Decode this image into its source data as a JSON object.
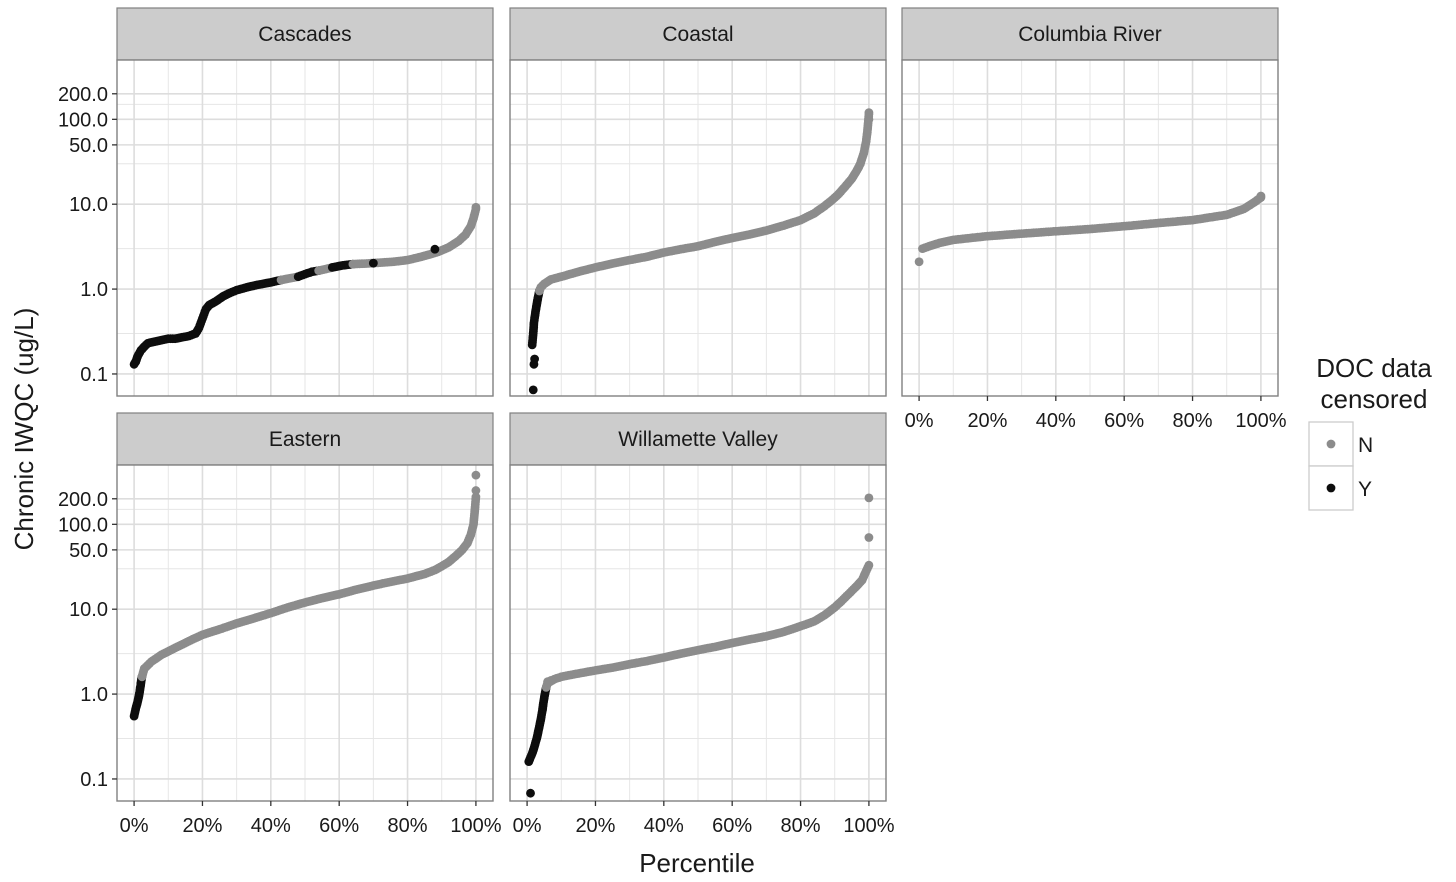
{
  "chart_data": {
    "type": "scatter",
    "facet_layout": "wrap",
    "ylabel": "Chronic IWQC (ug/L)",
    "xlabel": "Percentile",
    "y_scale": "log10",
    "ylim": [
      0.055,
      500
    ],
    "xlim": [
      -5,
      105
    ],
    "y_ticks": [
      0.1,
      1,
      10,
      50,
      100,
      200
    ],
    "y_tick_labels": [
      "0.1",
      "1.0",
      "10.0",
      "50.0",
      "100.0",
      "200.0"
    ],
    "y_minor_ticks": [
      0.3,
      3,
      30,
      150
    ],
    "x_ticks": [
      0,
      20,
      40,
      60,
      80,
      100
    ],
    "x_tick_labels": [
      "0%",
      "20%",
      "40%",
      "60%",
      "80%",
      "100%"
    ],
    "grid": true,
    "legend": {
      "title_lines": [
        "DOC data",
        "censored"
      ],
      "position": "right",
      "entries": [
        {
          "label": "N",
          "color": "#8c8c8c"
        },
        {
          "label": "Y",
          "color": "#0d0d0d"
        }
      ]
    },
    "colors": {
      "N": "#8c8c8c",
      "Y": "#0d0d0d",
      "strip_fill": "#cccccc",
      "grid": "#e6e6e6",
      "frame": "#808080"
    },
    "panels": [
      {
        "name": "Cascades",
        "curves": [
          {
            "group": "Y",
            "points": [
              [
                0,
                0.13
              ],
              [
                0.5,
                0.14
              ],
              [
                1,
                0.16
              ],
              [
                2,
                0.19
              ],
              [
                3,
                0.21
              ],
              [
                4,
                0.23
              ],
              [
                6,
                0.24
              ],
              [
                8,
                0.25
              ],
              [
                10,
                0.26
              ],
              [
                12,
                0.26
              ],
              [
                14,
                0.27
              ],
              [
                16,
                0.28
              ],
              [
                18,
                0.3
              ],
              [
                19,
                0.35
              ],
              [
                20,
                0.45
              ],
              [
                21,
                0.58
              ],
              [
                22,
                0.65
              ],
              [
                24,
                0.72
              ],
              [
                26,
                0.82
              ],
              [
                28,
                0.9
              ],
              [
                30,
                0.97
              ],
              [
                33,
                1.05
              ],
              [
                36,
                1.12
              ],
              [
                40,
                1.2
              ],
              [
                43,
                1.28
              ]
            ]
          },
          {
            "group": "N",
            "points": [
              [
                43,
                1.28
              ],
              [
                46,
                1.35
              ],
              [
                48,
                1.4
              ]
            ]
          },
          {
            "group": "Y",
            "points": [
              [
                48,
                1.4
              ],
              [
                50,
                1.5
              ],
              [
                52,
                1.6
              ],
              [
                54,
                1.65
              ]
            ]
          },
          {
            "group": "N",
            "points": [
              [
                54,
                1.65
              ],
              [
                56,
                1.72
              ],
              [
                58,
                1.8
              ]
            ]
          },
          {
            "group": "Y",
            "points": [
              [
                58,
                1.8
              ],
              [
                61,
                1.9
              ],
              [
                64,
                1.97
              ]
            ]
          },
          {
            "group": "N",
            "points": [
              [
                64,
                1.97
              ],
              [
                68,
                2.0
              ],
              [
                72,
                2.05
              ],
              [
                76,
                2.1
              ],
              [
                80,
                2.2
              ],
              [
                84,
                2.4
              ],
              [
                87,
                2.6
              ],
              [
                89,
                2.75
              ],
              [
                92,
                3.1
              ],
              [
                95,
                3.7
              ],
              [
                97,
                4.4
              ],
              [
                98.5,
                5.5
              ],
              [
                99.3,
                6.8
              ],
              [
                100,
                8.8
              ]
            ]
          }
        ],
        "points": [
          {
            "group": "Y",
            "x": 88,
            "y": 2.95
          },
          {
            "group": "Y",
            "x": 70,
            "y": 2.02
          },
          {
            "group": "N",
            "x": 100,
            "y": 9.2
          }
        ]
      },
      {
        "name": "Coastal",
        "curves": [
          {
            "group": "Y",
            "points": [
              [
                1.5,
                0.22
              ],
              [
                1.8,
                0.3
              ],
              [
                2,
                0.4
              ],
              [
                2.4,
                0.52
              ],
              [
                2.8,
                0.65
              ],
              [
                3.2,
                0.8
              ],
              [
                3.6,
                0.95
              ]
            ]
          },
          {
            "group": "N",
            "points": [
              [
                3.6,
                0.95
              ],
              [
                4,
                1.05
              ],
              [
                5,
                1.15
              ],
              [
                7,
                1.3
              ],
              [
                10,
                1.4
              ],
              [
                15,
                1.6
              ],
              [
                20,
                1.8
              ],
              [
                25,
                2.0
              ],
              [
                30,
                2.2
              ],
              [
                35,
                2.4
              ],
              [
                40,
                2.7
              ],
              [
                45,
                2.95
              ],
              [
                50,
                3.2
              ],
              [
                55,
                3.6
              ],
              [
                60,
                4.0
              ],
              [
                65,
                4.4
              ],
              [
                70,
                4.9
              ],
              [
                75,
                5.6
              ],
              [
                80,
                6.5
              ],
              [
                84,
                7.8
              ],
              [
                87,
                9.5
              ],
              [
                89,
                11
              ],
              [
                91,
                13
              ],
              [
                93,
                16
              ],
              [
                95,
                20
              ],
              [
                96.5,
                25
              ],
              [
                97.5,
                30
              ],
              [
                98.5,
                40
              ],
              [
                99.2,
                55
              ],
              [
                99.6,
                75
              ],
              [
                100,
                115
              ]
            ]
          }
        ],
        "points": [
          {
            "group": "Y",
            "x": 1.8,
            "y": 0.065
          },
          {
            "group": "Y",
            "x": 2.0,
            "y": 0.13
          },
          {
            "group": "Y",
            "x": 2.2,
            "y": 0.15
          },
          {
            "group": "N",
            "x": 100,
            "y": 120
          },
          {
            "group": "N",
            "x": 100,
            "y": 100
          }
        ]
      },
      {
        "name": "Columbia River",
        "curves": [
          {
            "group": "N",
            "points": [
              [
                1,
                3.0
              ],
              [
                3,
                3.2
              ],
              [
                6,
                3.5
              ],
              [
                10,
                3.8
              ],
              [
                15,
                4.0
              ],
              [
                20,
                4.2
              ],
              [
                30,
                4.5
              ],
              [
                40,
                4.8
              ],
              [
                50,
                5.1
              ],
              [
                60,
                5.5
              ],
              [
                70,
                6.0
              ],
              [
                80,
                6.5
              ],
              [
                90,
                7.5
              ],
              [
                95,
                8.8
              ],
              [
                98,
                10.5
              ],
              [
                100,
                12
              ]
            ]
          }
        ],
        "points": [
          {
            "group": "N",
            "x": 0,
            "y": 2.1
          },
          {
            "group": "N",
            "x": 100,
            "y": 12.5
          }
        ]
      },
      {
        "name": "Eastern",
        "curves": [
          {
            "group": "Y",
            "points": [
              [
                0,
                0.55
              ],
              [
                0.3,
                0.62
              ],
              [
                0.6,
                0.7
              ],
              [
                1,
                0.8
              ],
              [
                1.3,
                0.9
              ],
              [
                1.6,
                1.05
              ],
              [
                1.9,
                1.25
              ],
              [
                2.1,
                1.45
              ],
              [
                2.3,
                1.6
              ]
            ]
          },
          {
            "group": "N",
            "points": [
              [
                2.3,
                1.6
              ],
              [
                3,
                2.0
              ],
              [
                5,
                2.4
              ],
              [
                8,
                2.9
              ],
              [
                12,
                3.5
              ],
              [
                16,
                4.2
              ],
              [
                20,
                5.0
              ],
              [
                25,
                5.8
              ],
              [
                30,
                6.8
              ],
              [
                35,
                7.8
              ],
              [
                40,
                9.0
              ],
              [
                45,
                10.5
              ],
              [
                50,
                12
              ],
              [
                55,
                13.5
              ],
              [
                60,
                15
              ],
              [
                65,
                17
              ],
              [
                70,
                19
              ],
              [
                75,
                21
              ],
              [
                80,
                23
              ],
              [
                85,
                26
              ],
              [
                88,
                29
              ],
              [
                90,
                32
              ],
              [
                92,
                36
              ],
              [
                94,
                42
              ],
              [
                96,
                50
              ],
              [
                97.5,
                60
              ],
              [
                98.5,
                75
              ],
              [
                99.3,
                100
              ],
              [
                99.7,
                150
              ],
              [
                100,
                210
              ]
            ]
          }
        ],
        "points": [
          {
            "group": "N",
            "x": 100,
            "y": 380
          },
          {
            "group": "N",
            "x": 100,
            "y": 250
          }
        ]
      },
      {
        "name": "Willamette Valley",
        "curves": [
          {
            "group": "Y",
            "points": [
              [
                0.5,
                0.16
              ],
              [
                1,
                0.18
              ],
              [
                1.5,
                0.2
              ],
              [
                2,
                0.23
              ],
              [
                2.5,
                0.27
              ],
              [
                3,
                0.32
              ],
              [
                3.5,
                0.4
              ],
              [
                4,
                0.5
              ],
              [
                4.5,
                0.65
              ],
              [
                4.8,
                0.8
              ],
              [
                5.2,
                1.0
              ],
              [
                5.6,
                1.2
              ]
            ]
          },
          {
            "group": "N",
            "points": [
              [
                5.6,
                1.2
              ],
              [
                6,
                1.35
              ],
              [
                8,
                1.5
              ],
              [
                10,
                1.6
              ],
              [
                15,
                1.75
              ],
              [
                20,
                1.9
              ],
              [
                25,
                2.05
              ],
              [
                30,
                2.25
              ],
              [
                35,
                2.45
              ],
              [
                40,
                2.7
              ],
              [
                45,
                3.0
              ],
              [
                50,
                3.3
              ],
              [
                55,
                3.6
              ],
              [
                60,
                4.0
              ],
              [
                65,
                4.4
              ],
              [
                70,
                4.8
              ],
              [
                75,
                5.4
              ],
              [
                80,
                6.3
              ],
              [
                84,
                7.2
              ],
              [
                87,
                8.5
              ],
              [
                90,
                10.5
              ],
              [
                92,
                12.5
              ],
              [
                94,
                15
              ],
              [
                96,
                18
              ],
              [
                98,
                22
              ],
              [
                99,
                27
              ],
              [
                100,
                33
              ]
            ]
          }
        ],
        "points": [
          {
            "group": "Y",
            "x": 1.0,
            "y": 0.068
          },
          {
            "group": "N",
            "x": 6,
            "y": 1.4
          },
          {
            "group": "N",
            "x": 7,
            "y": 1.45
          },
          {
            "group": "N",
            "x": 100,
            "y": 70
          },
          {
            "group": "N",
            "x": 100,
            "y": 205
          }
        ]
      }
    ]
  }
}
